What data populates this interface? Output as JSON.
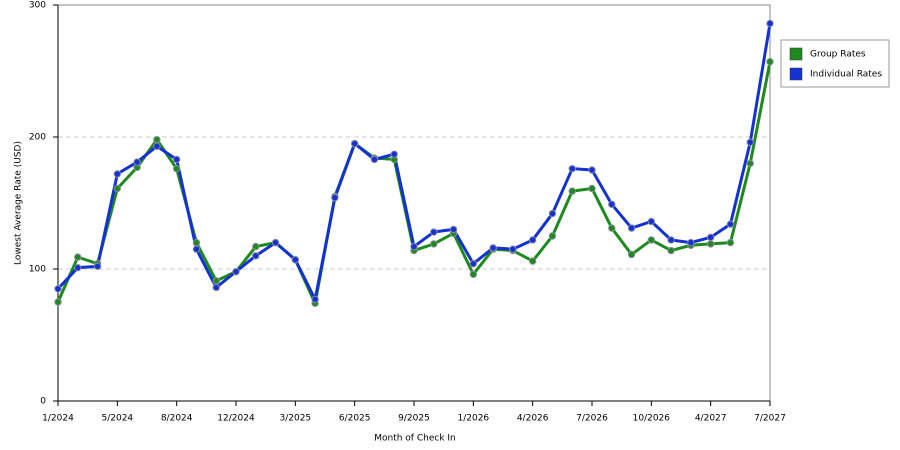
{
  "chart_data": {
    "type": "line",
    "x_label": "Month of Check In",
    "y_label": "Lowest Average Rate (USD)",
    "categories": [
      "1/2024",
      null,
      null,
      "5/2024",
      null,
      null,
      "8/2024",
      null,
      null,
      "12/2024",
      null,
      null,
      "3/2025",
      null,
      null,
      "6/2025",
      null,
      null,
      "9/2025",
      null,
      null,
      "1/2026",
      null,
      null,
      "4/2026",
      null,
      null,
      "7/2026",
      null,
      null,
      "10/2026",
      null,
      null,
      "4/2027",
      null,
      null,
      "7/2027"
    ],
    "series": [
      {
        "name": "Group Rates",
        "color": "#1e8a1e",
        "values": [
          75,
          109,
          104,
          161,
          177,
          198,
          176,
          120,
          91,
          98,
          117,
          120,
          107,
          74,
          155,
          195,
          184,
          183,
          114,
          119,
          127,
          96,
          115,
          114,
          106,
          125,
          159,
          161,
          131,
          111,
          122,
          114,
          118,
          119,
          120,
          180,
          257
        ]
      },
      {
        "name": "Individual Rates",
        "color": "#1432d2",
        "values": [
          85,
          101,
          102,
          172,
          181,
          193,
          183,
          115,
          86,
          98,
          110,
          120,
          107,
          77,
          154,
          195,
          183,
          187,
          117,
          128,
          130,
          104,
          116,
          115,
          122,
          142,
          176,
          175,
          149,
          131,
          136,
          122,
          120,
          124,
          134,
          196,
          286
        ]
      }
    ],
    "ylim": [
      0,
      300
    ],
    "yticks": [
      0,
      100,
      200,
      300
    ],
    "grid": true,
    "legend": "right"
  }
}
